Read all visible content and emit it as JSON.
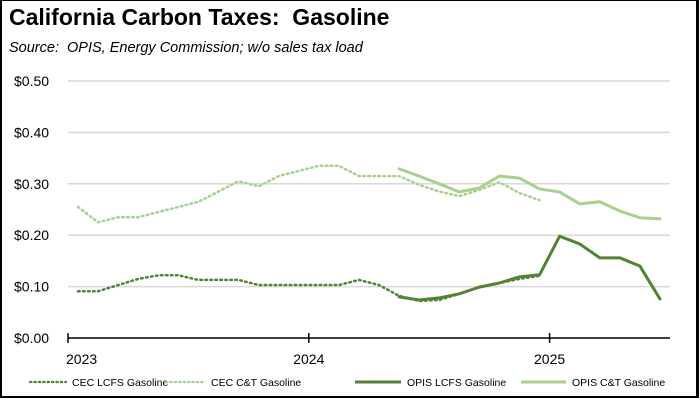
{
  "chart_data": {
    "type": "line",
    "title": "California Carbon Taxes:  Gasoline",
    "subtitle": "Source:  OPIS, Energy Commission; w/o sales tax load",
    "xlabel": "",
    "ylabel": "",
    "x_start": "2023-01",
    "x_unit": "month",
    "x_ticks": [
      {
        "label": "2023",
        "month_index": 0
      },
      {
        "label": "2024",
        "month_index": 12
      },
      {
        "label": "2025",
        "month_index": 24
      }
    ],
    "xlim_months": [
      0,
      30
    ],
    "ylim": [
      0,
      0.5
    ],
    "y_ticks": [
      {
        "value": 0.0,
        "label": "$0.00"
      },
      {
        "value": 0.1,
        "label": "$0.10"
      },
      {
        "value": 0.2,
        "label": "$0.20"
      },
      {
        "value": 0.3,
        "label": "$0.30"
      },
      {
        "value": 0.4,
        "label": "$0.40"
      },
      {
        "value": 0.5,
        "label": "$0.50"
      }
    ],
    "grid": true,
    "legend_position": "bottom",
    "series": [
      {
        "name": "CEC LCFS Gasoline",
        "color": "#548235",
        "style": "dotted",
        "start_month_index": 0,
        "values": [
          0.091,
          0.091,
          0.103,
          0.115,
          0.122,
          0.122,
          0.113,
          0.113,
          0.113,
          0.103,
          0.103,
          0.103,
          0.103,
          0.103,
          0.113,
          0.103,
          0.082,
          0.072,
          0.074,
          0.086,
          0.099,
          0.107,
          0.115,
          0.121
        ]
      },
      {
        "name": "CEC C&T Gasoline",
        "color": "#A9D18E",
        "style": "dotted",
        "start_month_index": 0,
        "values": [
          0.255,
          0.225,
          0.235,
          0.235,
          0.245,
          0.255,
          0.265,
          0.285,
          0.305,
          0.295,
          0.315,
          0.325,
          0.335,
          0.335,
          0.315,
          0.315,
          0.315,
          0.298,
          0.285,
          0.276,
          0.288,
          0.303,
          0.282,
          0.268
        ]
      },
      {
        "name": "OPIS LCFS Gasoline",
        "color": "#548235",
        "style": "solid",
        "start_month_index": 16,
        "values": [
          0.08,
          0.074,
          0.078,
          0.086,
          0.099,
          0.107,
          0.119,
          0.123,
          0.198,
          0.183,
          0.156,
          0.156,
          0.14,
          0.076
        ]
      },
      {
        "name": "OPIS C&T Gasoline",
        "color": "#A9D18E",
        "style": "solid",
        "start_month_index": 16,
        "values": [
          0.329,
          0.315,
          0.3,
          0.284,
          0.292,
          0.315,
          0.311,
          0.29,
          0.284,
          0.261,
          0.265,
          0.247,
          0.234,
          0.232
        ]
      }
    ]
  }
}
